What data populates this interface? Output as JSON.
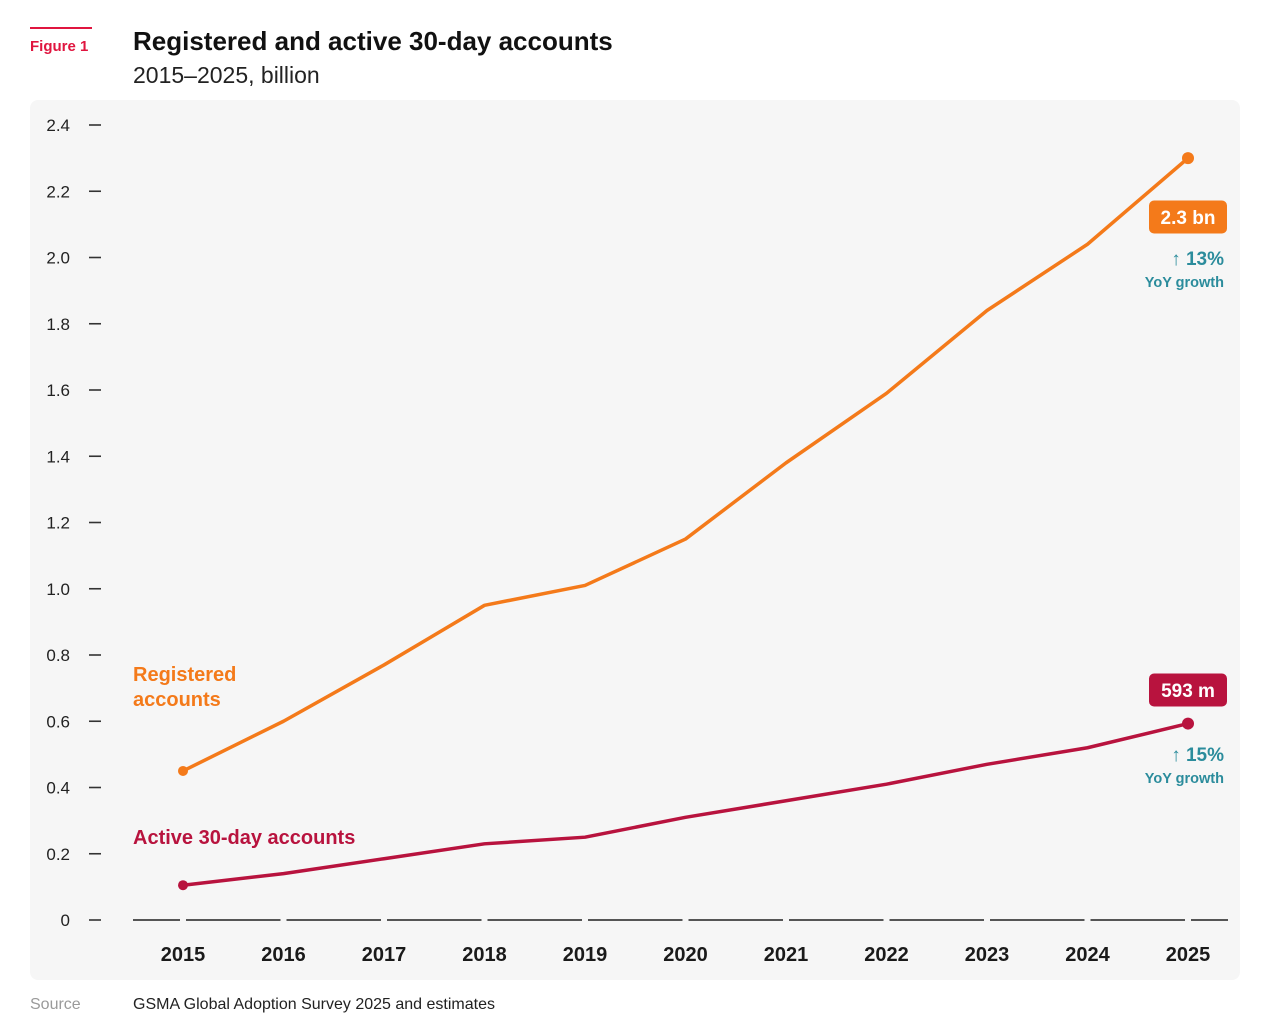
{
  "figure_label": "Figure 1",
  "source_label": "Source",
  "source_text": "GSMA Global Adoption Survey 2025 and estimates",
  "colors": {
    "registered": "#f47a1a",
    "active": "#b8133e",
    "growth": "#2b8c9c",
    "figure": "#e0153f"
  },
  "chart_data": {
    "type": "line",
    "title": "Registered and active 30-day accounts",
    "subtitle": "2015–2025, billion",
    "xlabel": "",
    "ylabel": "",
    "ylim": [
      0,
      2.4
    ],
    "yticks": [
      "0",
      "0.2",
      "0.4",
      "0.6",
      "0.8",
      "1.0",
      "1.2",
      "1.4",
      "1.6",
      "1.8",
      "2.0",
      "2.2",
      "2.4"
    ],
    "x": [
      "2015",
      "2016",
      "2017",
      "2018",
      "2019",
      "2020",
      "2021",
      "2022",
      "2023",
      "2024",
      "2025"
    ],
    "grid": false,
    "series": [
      {
        "name": "Registered accounts",
        "label_lines": [
          "Registered",
          "accounts"
        ],
        "values": [
          0.45,
          0.6,
          0.77,
          0.95,
          1.01,
          1.15,
          1.38,
          1.59,
          1.84,
          2.04,
          2.3
        ],
        "end_label": "2.3 bn",
        "growth_value": "13%",
        "growth_text": "YoY growth"
      },
      {
        "name": "Active 30-day accounts",
        "label_lines": [
          "Active 30-day accounts"
        ],
        "values": [
          0.105,
          0.14,
          0.185,
          0.23,
          0.25,
          0.31,
          0.36,
          0.41,
          0.47,
          0.52,
          0.593
        ],
        "end_label": "593 m",
        "growth_value": "15%",
        "growth_text": "YoY growth"
      }
    ]
  }
}
